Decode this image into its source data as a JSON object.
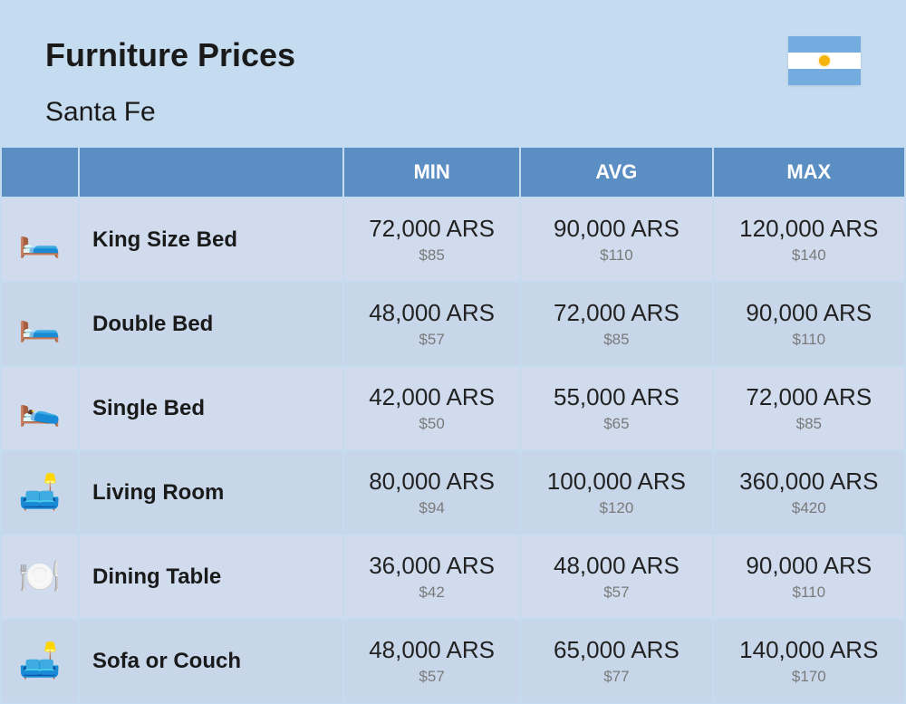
{
  "header": {
    "title": "Furniture Prices",
    "subtitle": "Santa Fe"
  },
  "columns": {
    "min": "MIN",
    "avg": "AVG",
    "max": "MAX"
  },
  "colors": {
    "page_bg": "#c5dcf0",
    "header_bg": "#5b8fc4",
    "header_text": "#ffffff",
    "row_bg_odd": "#d0dced",
    "row_bg_even": "#c8d6ea",
    "title_color": "#1a1a1a",
    "price_main": "#222222",
    "price_sub": "#7a7a7a",
    "flag_blue": "#74acdf",
    "flag_white": "#ffffff",
    "flag_sun": "#f6b40e"
  },
  "typography": {
    "title_fontsize": 36,
    "title_weight": 800,
    "subtitle_fontsize": 30,
    "header_fontsize": 22,
    "name_fontsize": 24,
    "price_main_fontsize": 26,
    "price_sub_fontsize": 17
  },
  "rows": [
    {
      "icon": "🛏️",
      "name": "King Size Bed",
      "min": {
        "ars": "72,000 ARS",
        "usd": "$85"
      },
      "avg": {
        "ars": "90,000 ARS",
        "usd": "$110"
      },
      "max": {
        "ars": "120,000 ARS",
        "usd": "$140"
      }
    },
    {
      "icon": "🛏️",
      "name": "Double Bed",
      "min": {
        "ars": "48,000 ARS",
        "usd": "$57"
      },
      "avg": {
        "ars": "72,000 ARS",
        "usd": "$85"
      },
      "max": {
        "ars": "90,000 ARS",
        "usd": "$110"
      }
    },
    {
      "icon": "🛌",
      "name": "Single Bed",
      "min": {
        "ars": "42,000 ARS",
        "usd": "$50"
      },
      "avg": {
        "ars": "55,000 ARS",
        "usd": "$65"
      },
      "max": {
        "ars": "72,000 ARS",
        "usd": "$85"
      }
    },
    {
      "icon": "🛋️",
      "name": "Living Room",
      "min": {
        "ars": "80,000 ARS",
        "usd": "$94"
      },
      "avg": {
        "ars": "100,000 ARS",
        "usd": "$120"
      },
      "max": {
        "ars": "360,000 ARS",
        "usd": "$420"
      }
    },
    {
      "icon": "🍽️",
      "name": "Dining Table",
      "min": {
        "ars": "36,000 ARS",
        "usd": "$42"
      },
      "avg": {
        "ars": "48,000 ARS",
        "usd": "$57"
      },
      "max": {
        "ars": "90,000 ARS",
        "usd": "$110"
      }
    },
    {
      "icon": "🛋️",
      "name": "Sofa or Couch",
      "min": {
        "ars": "48,000 ARS",
        "usd": "$57"
      },
      "avg": {
        "ars": "65,000 ARS",
        "usd": "$77"
      },
      "max": {
        "ars": "140,000 ARS",
        "usd": "$170"
      }
    }
  ]
}
